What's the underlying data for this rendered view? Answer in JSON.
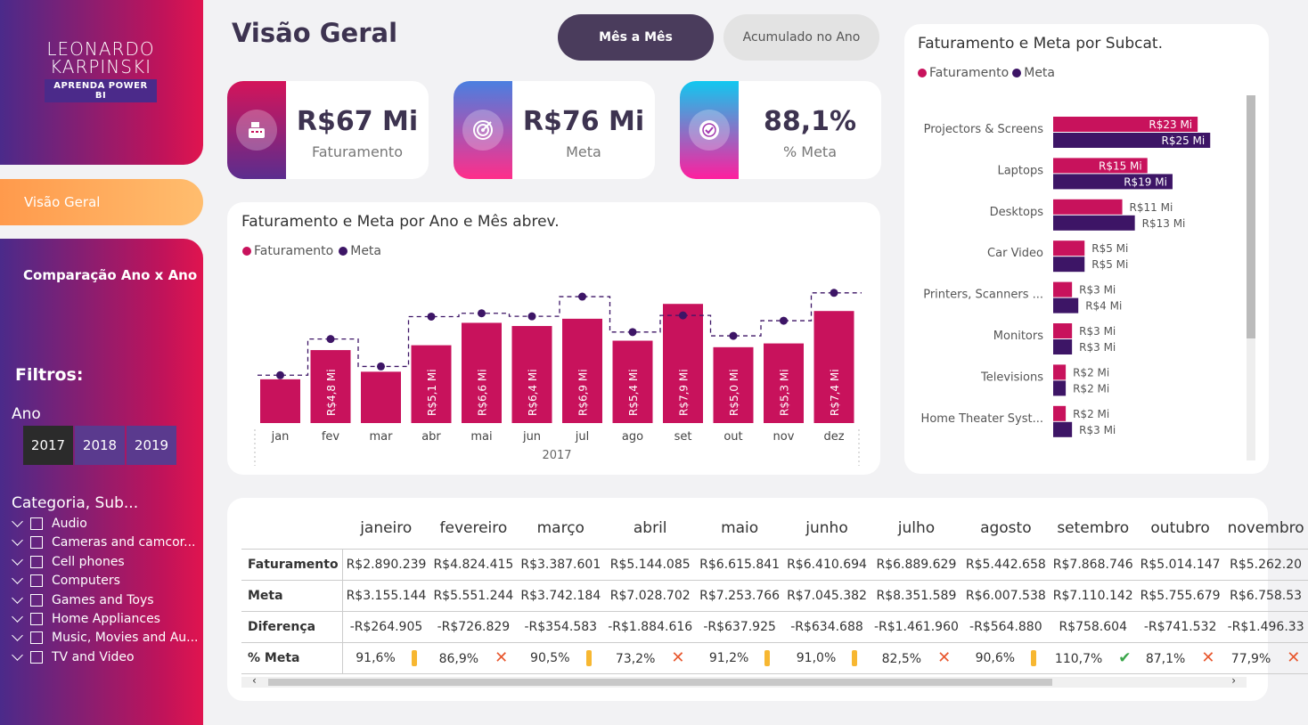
{
  "logo": {
    "name1": "LEONARDO",
    "name2": "KARPINSKI",
    "sub": "APRENDA POWER BI"
  },
  "nav": {
    "visao": "Visão Geral",
    "comparacao": "Comparação Ano x Ano"
  },
  "filters": {
    "title": "Filtros:",
    "ano_label": "Ano",
    "years": [
      "2017",
      "2018",
      "2019"
    ],
    "selected_year": "2017",
    "cat_label": "Categoria, Sub...",
    "categories": [
      "Audio",
      "Cameras and camcor...",
      "Cell phones",
      "Computers",
      "Games and Toys",
      "Home Appliances",
      "Music, Movies and Au...",
      "TV and Video"
    ]
  },
  "header": {
    "title": "Visão Geral",
    "btn_mes": "Mês a Mês",
    "btn_acum": "Acumulado no Ano"
  },
  "kpis": [
    {
      "value": "R$67 Mi",
      "label": "Faturamento",
      "icon": "cash-register-icon"
    },
    {
      "value": "R$76 Mi",
      "label": "Meta",
      "icon": "target-icon"
    },
    {
      "value": "88,1%",
      "label": "% Meta",
      "icon": "badge-check-icon"
    }
  ],
  "colors": {
    "faturamento": "#c8125c",
    "meta": "#3d1566",
    "accent_orange": "#ff9a4c",
    "dark_btn": "#4a3c5c"
  },
  "legend": {
    "faturamento": "Faturamento",
    "meta": "Meta"
  },
  "chart_monthly": {
    "title": "Faturamento e Meta por Ano e Mês abrev."
  },
  "chart_subcat": {
    "title": "Faturamento e Meta por Subcat."
  },
  "chart_data": [
    {
      "type": "bar",
      "title": "Faturamento e Meta por Ano e Mês abrev.",
      "x_group": "2017",
      "categories": [
        "jan",
        "fev",
        "mar",
        "abr",
        "mai",
        "jun",
        "jul",
        "ago",
        "set",
        "out",
        "nov",
        "dez"
      ],
      "series": [
        {
          "name": "Faturamento",
          "values": [
            2.89,
            4.82,
            3.39,
            5.14,
            6.62,
            6.41,
            6.89,
            5.44,
            7.87,
            5.01,
            5.26,
            7.4
          ]
        },
        {
          "name": "Meta",
          "values": [
            3.16,
            5.55,
            3.74,
            7.03,
            7.25,
            7.05,
            8.35,
            6.01,
            7.11,
            5.76,
            6.76,
            8.6
          ]
        }
      ],
      "data_labels": [
        "",
        "R$4,8 Mi",
        "",
        "R$5,1 Mi",
        "R$6,6 Mi",
        "R$6,4 Mi",
        "R$6,9 Mi",
        "R$5,4 Mi",
        "R$7,9 Mi",
        "R$5,0 Mi",
        "R$5,3 Mi",
        "R$7,4 Mi"
      ],
      "ylim": [
        0,
        10
      ]
    },
    {
      "type": "bar",
      "orientation": "horizontal",
      "title": "Faturamento e Meta por Subcat.",
      "categories": [
        "Projectors & Screens",
        "Laptops",
        "Desktops",
        "Car Video",
        "Printers, Scanners ...",
        "Monitors",
        "Televisions",
        "Home Theater Syst..."
      ],
      "series": [
        {
          "name": "Faturamento",
          "values": [
            23,
            15,
            11,
            5,
            3,
            3,
            2,
            2
          ],
          "labels": [
            "R$23 Mi",
            "R$15 Mi",
            "R$11 Mi",
            "R$5 Mi",
            "R$3 Mi",
            "R$3 Mi",
            "R$2 Mi",
            "R$2 Mi"
          ]
        },
        {
          "name": "Meta",
          "values": [
            25,
            19,
            13,
            5,
            4,
            3,
            2,
            3
          ],
          "labels": [
            "R$25 Mi",
            "R$19 Mi",
            "R$13 Mi",
            "R$5 Mi",
            "R$4 Mi",
            "R$3 Mi",
            "R$2 Mi",
            "R$3 Mi"
          ]
        }
      ]
    }
  ],
  "table": {
    "months": [
      "janeiro",
      "fevereiro",
      "março",
      "abril",
      "maio",
      "junho",
      "julho",
      "agosto",
      "setembro",
      "outubro",
      "novembro"
    ],
    "rows": [
      {
        "label": "Faturamento",
        "values": [
          "R$2.890.239",
          "R$4.824.415",
          "R$3.387.601",
          "R$5.144.085",
          "R$6.615.841",
          "R$6.410.694",
          "R$6.889.629",
          "R$5.442.658",
          "R$7.868.746",
          "R$5.014.147",
          "R$5.262.20"
        ]
      },
      {
        "label": "Meta",
        "values": [
          "R$3.155.144",
          "R$5.551.244",
          "R$3.742.184",
          "R$7.028.702",
          "R$7.253.766",
          "R$7.045.382",
          "R$8.351.589",
          "R$6.007.538",
          "R$7.110.142",
          "R$5.755.679",
          "R$6.758.53"
        ]
      },
      {
        "label": "Diferença",
        "values": [
          "-R$264.905",
          "-R$726.829",
          "-R$354.583",
          "-R$1.884.616",
          "-R$637.925",
          "-R$634.688",
          "-R$1.461.960",
          "-R$564.880",
          "R$758.604",
          "-R$741.532",
          "-R$1.496.33"
        ]
      }
    ],
    "pct_label": "% Meta",
    "pct": [
      {
        "v": "91,6%",
        "s": "warn"
      },
      {
        "v": "86,9%",
        "s": "bad"
      },
      {
        "v": "90,5%",
        "s": "warn"
      },
      {
        "v": "73,2%",
        "s": "bad"
      },
      {
        "v": "91,2%",
        "s": "warn"
      },
      {
        "v": "91,0%",
        "s": "warn"
      },
      {
        "v": "82,5%",
        "s": "bad"
      },
      {
        "v": "90,6%",
        "s": "warn"
      },
      {
        "v": "110,7%",
        "s": "ok"
      },
      {
        "v": "87,1%",
        "s": "bad"
      },
      {
        "v": "77,9%",
        "s": "bad"
      }
    ]
  }
}
